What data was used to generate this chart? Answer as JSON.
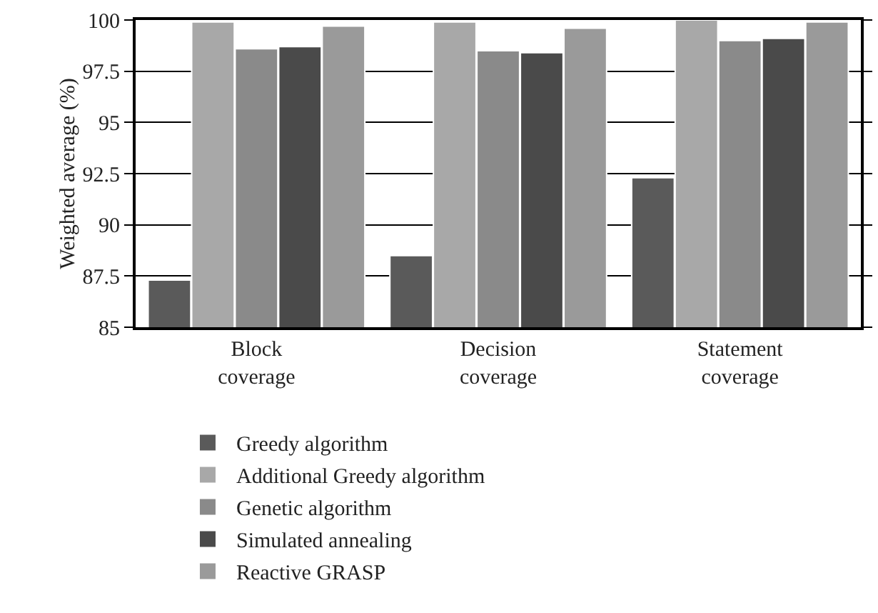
{
  "chart_data": {
    "type": "bar",
    "ylabel": "Weighted average (%)",
    "categories": [
      "Block\ncoverage",
      "Decision\ncoverage",
      "Statement\ncoverage"
    ],
    "series": [
      {
        "name": "Greedy algorithm",
        "color": "#5a5a5a",
        "values": [
          87.3,
          88.5,
          92.3
        ]
      },
      {
        "name": "Additional Greedy algorithm",
        "color": "#a8a8a8",
        "values": [
          99.9,
          99.9,
          100
        ]
      },
      {
        "name": "Genetic algorithm",
        "color": "#8a8a8a",
        "values": [
          98.6,
          98.5,
          99.0
        ]
      },
      {
        "name": "Simulated annealing",
        "color": "#4a4a4a",
        "values": [
          98.7,
          98.4,
          99.1
        ]
      },
      {
        "name": "Reactive GRASP",
        "color": "#9a9a9a",
        "values": [
          99.7,
          99.6,
          99.9
        ]
      }
    ],
    "ylim": [
      85,
      100
    ],
    "yticks": [
      85,
      {
        "value": 87.5,
        "label": "87.5"
      },
      90,
      {
        "value": 92.5,
        "label": "92.5"
      },
      95,
      {
        "value": 97.5,
        "label": "97.5"
      },
      100
    ],
    "grid": "y",
    "legend": "bottom"
  }
}
